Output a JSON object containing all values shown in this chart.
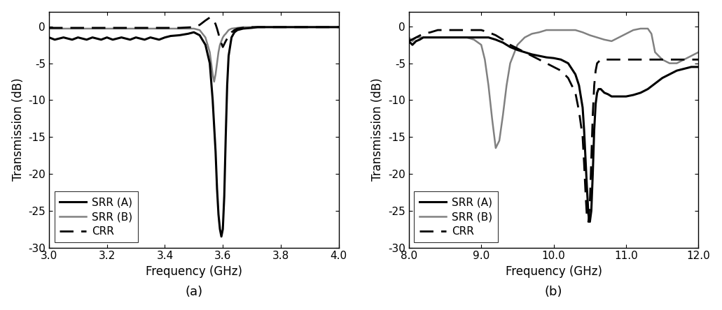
{
  "panel_a": {
    "xlim": [
      3.0,
      4.0
    ],
    "ylim": [
      -30,
      2
    ],
    "xticks": [
      3.0,
      3.2,
      3.4,
      3.6,
      3.8,
      4.0
    ],
    "yticks": [
      0,
      -5,
      -10,
      -15,
      -20,
      -25,
      -30
    ],
    "xlabel": "Frequency (GHz)",
    "ylabel": "Transmission (dB)",
    "label": "(a)",
    "srr_a": {
      "color": "#000000",
      "linewidth": 2.2,
      "linestyle": "solid",
      "label": "SRR (A)",
      "x": [
        3.0,
        3.02,
        3.05,
        3.08,
        3.1,
        3.13,
        3.15,
        3.18,
        3.2,
        3.22,
        3.25,
        3.28,
        3.3,
        3.33,
        3.35,
        3.38,
        3.4,
        3.42,
        3.45,
        3.48,
        3.5,
        3.52,
        3.54,
        3.555,
        3.565,
        3.575,
        3.58,
        3.585,
        3.59,
        3.595,
        3.6,
        3.605,
        3.61,
        3.615,
        3.62,
        3.63,
        3.64,
        3.65,
        3.67,
        3.7,
        3.72,
        3.75,
        3.8,
        3.85,
        3.9,
        3.95,
        4.0
      ],
      "y": [
        -1.5,
        -1.8,
        -1.5,
        -1.8,
        -1.5,
        -1.8,
        -1.5,
        -1.8,
        -1.5,
        -1.8,
        -1.5,
        -1.8,
        -1.5,
        -1.8,
        -1.5,
        -1.8,
        -1.5,
        -1.3,
        -1.2,
        -1.0,
        -0.8,
        -1.2,
        -2.5,
        -5.0,
        -10.0,
        -17.0,
        -22.0,
        -25.5,
        -27.5,
        -28.5,
        -27.5,
        -23.0,
        -15.0,
        -8.0,
        -4.0,
        -1.5,
        -0.8,
        -0.5,
        -0.3,
        -0.2,
        -0.1,
        -0.1,
        -0.1,
        -0.1,
        -0.1,
        -0.1,
        -0.1
      ]
    },
    "srr_b": {
      "color": "#808080",
      "linewidth": 1.8,
      "linestyle": "solid",
      "label": "SRR (B)",
      "x": [
        3.0,
        3.05,
        3.1,
        3.15,
        3.2,
        3.25,
        3.3,
        3.35,
        3.4,
        3.45,
        3.5,
        3.52,
        3.54,
        3.555,
        3.565,
        3.57,
        3.575,
        3.58,
        3.585,
        3.59,
        3.595,
        3.6,
        3.605,
        3.61,
        3.62,
        3.63,
        3.65,
        3.67,
        3.7,
        3.75,
        3.8,
        3.85,
        3.9,
        3.95,
        4.0
      ],
      "y": [
        -0.3,
        -0.3,
        -0.3,
        -0.3,
        -0.3,
        -0.3,
        -0.3,
        -0.3,
        -0.3,
        -0.3,
        -0.3,
        -0.5,
        -1.5,
        -3.5,
        -6.5,
        -7.5,
        -6.5,
        -5.0,
        -3.5,
        -2.5,
        -2.0,
        -1.5,
        -1.2,
        -1.0,
        -0.5,
        -0.3,
        -0.2,
        -0.1,
        -0.1,
        -0.1,
        -0.1,
        -0.1,
        -0.1,
        -0.1,
        -0.1
      ]
    },
    "crr": {
      "color": "#000000",
      "linewidth": 2.0,
      "linestyle": "dashed",
      "label": "CRR",
      "x": [
        3.0,
        3.05,
        3.1,
        3.15,
        3.2,
        3.25,
        3.3,
        3.35,
        3.4,
        3.45,
        3.5,
        3.52,
        3.54,
        3.555,
        3.565,
        3.57,
        3.575,
        3.58,
        3.585,
        3.59,
        3.595,
        3.6,
        3.61,
        3.62,
        3.63,
        3.64,
        3.65,
        3.67,
        3.7,
        3.75,
        3.8,
        3.85,
        3.9,
        3.95,
        4.0
      ],
      "y": [
        -0.2,
        -0.2,
        -0.2,
        -0.2,
        -0.2,
        -0.2,
        -0.2,
        -0.2,
        -0.2,
        -0.2,
        -0.1,
        0.2,
        0.8,
        1.2,
        1.0,
        0.7,
        0.3,
        -0.3,
        -1.0,
        -1.8,
        -2.3,
        -2.8,
        -2.0,
        -1.3,
        -0.8,
        -0.5,
        -0.3,
        -0.2,
        -0.1,
        -0.1,
        -0.1,
        -0.1,
        -0.1,
        -0.1,
        -0.1
      ]
    }
  },
  "panel_b": {
    "xlim": [
      8.0,
      12.0
    ],
    "ylim": [
      -30,
      2
    ],
    "xticks": [
      8.0,
      9.0,
      10.0,
      11.0,
      12.0
    ],
    "yticks": [
      0,
      -5,
      -10,
      -15,
      -20,
      -25,
      -30
    ],
    "xlabel": "Frequency (GHz)",
    "ylabel": "Transmission (dB)",
    "label": "(b)",
    "srr_a": {
      "color": "#000000",
      "linewidth": 2.2,
      "linestyle": "solid",
      "label": "SRR (A)",
      "x": [
        8.0,
        8.05,
        8.1,
        8.15,
        8.2,
        8.3,
        8.4,
        8.5,
        8.6,
        8.7,
        8.8,
        8.9,
        9.0,
        9.1,
        9.2,
        9.3,
        9.4,
        9.5,
        9.6,
        9.7,
        9.8,
        9.9,
        10.0,
        10.1,
        10.2,
        10.3,
        10.35,
        10.4,
        10.42,
        10.44,
        10.46,
        10.48,
        10.5,
        10.52,
        10.54,
        10.56,
        10.58,
        10.6,
        10.62,
        10.65,
        10.7,
        10.75,
        10.8,
        10.9,
        11.0,
        11.1,
        11.2,
        11.3,
        11.5,
        11.7,
        11.9,
        12.0
      ],
      "y": [
        -2.0,
        -2.5,
        -2.0,
        -1.8,
        -1.5,
        -1.5,
        -1.5,
        -1.5,
        -1.5,
        -1.5,
        -1.5,
        -1.5,
        -1.5,
        -1.5,
        -1.8,
        -2.2,
        -2.8,
        -3.2,
        -3.5,
        -3.8,
        -4.0,
        -4.2,
        -4.3,
        -4.5,
        -5.0,
        -6.5,
        -8.0,
        -11.0,
        -14.0,
        -18.0,
        -22.0,
        -25.5,
        -26.5,
        -25.0,
        -20.0,
        -14.0,
        -10.5,
        -9.0,
        -8.5,
        -8.5,
        -9.0,
        -9.2,
        -9.5,
        -9.5,
        -9.5,
        -9.3,
        -9.0,
        -8.5,
        -7.0,
        -6.0,
        -5.5,
        -5.5
      ]
    },
    "srr_b": {
      "color": "#808080",
      "linewidth": 1.8,
      "linestyle": "solid",
      "label": "SRR (B)",
      "x": [
        8.0,
        8.05,
        8.1,
        8.2,
        8.3,
        8.4,
        8.5,
        8.6,
        8.7,
        8.8,
        8.9,
        9.0,
        9.05,
        9.1,
        9.15,
        9.2,
        9.25,
        9.3,
        9.35,
        9.4,
        9.5,
        9.6,
        9.7,
        9.8,
        9.9,
        10.0,
        10.1,
        10.2,
        10.3,
        10.4,
        10.5,
        10.6,
        10.7,
        10.8,
        10.9,
        11.0,
        11.1,
        11.2,
        11.3,
        11.35,
        11.4,
        11.5,
        11.6,
        11.7,
        11.8,
        11.9,
        12.0
      ],
      "y": [
        -1.5,
        -2.0,
        -1.5,
        -1.5,
        -1.5,
        -1.5,
        -1.5,
        -1.5,
        -1.5,
        -1.5,
        -1.8,
        -2.5,
        -4.5,
        -8.0,
        -12.5,
        -16.5,
        -15.5,
        -12.0,
        -8.0,
        -5.0,
        -2.5,
        -1.5,
        -1.0,
        -0.8,
        -0.5,
        -0.5,
        -0.5,
        -0.5,
        -0.5,
        -0.8,
        -1.2,
        -1.5,
        -1.8,
        -2.0,
        -1.5,
        -1.0,
        -0.5,
        -0.3,
        -0.3,
        -1.0,
        -3.5,
        -4.5,
        -5.0,
        -5.0,
        -4.5,
        -4.0,
        -3.5
      ]
    },
    "crr": {
      "color": "#000000",
      "linewidth": 2.0,
      "linestyle": "dashed",
      "label": "CRR",
      "x": [
        8.0,
        8.1,
        8.2,
        8.3,
        8.4,
        8.5,
        8.6,
        8.7,
        8.8,
        8.9,
        9.0,
        9.1,
        9.2,
        9.3,
        9.4,
        9.5,
        9.6,
        9.7,
        9.8,
        9.9,
        10.0,
        10.1,
        10.2,
        10.3,
        10.35,
        10.4,
        10.42,
        10.44,
        10.46,
        10.48,
        10.5,
        10.52,
        10.54,
        10.56,
        10.58,
        10.6,
        10.65,
        10.7,
        10.8,
        10.9,
        11.0,
        11.1,
        11.2,
        11.3,
        11.4,
        11.5,
        11.6,
        11.7,
        11.8,
        11.9,
        12.0
      ],
      "y": [
        -2.0,
        -1.5,
        -1.0,
        -0.8,
        -0.5,
        -0.5,
        -0.5,
        -0.5,
        -0.5,
        -0.5,
        -0.5,
        -0.8,
        -1.2,
        -1.8,
        -2.5,
        -3.0,
        -3.5,
        -4.0,
        -4.5,
        -5.0,
        -5.5,
        -6.0,
        -7.0,
        -9.0,
        -11.5,
        -15.0,
        -18.5,
        -22.5,
        -26.0,
        -26.5,
        -24.0,
        -18.0,
        -12.0,
        -8.0,
        -6.0,
        -5.0,
        -4.5,
        -4.5,
        -4.5,
        -4.5,
        -4.5,
        -4.5,
        -4.5,
        -4.5,
        -4.5,
        -4.5,
        -4.5,
        -4.5,
        -4.5,
        -4.5,
        -4.5
      ]
    }
  },
  "figure": {
    "bgcolor": "#ffffff",
    "fontsize_label": 12,
    "fontsize_tick": 11,
    "fontsize_legend": 11,
    "fontsize_sublabel": 13
  }
}
